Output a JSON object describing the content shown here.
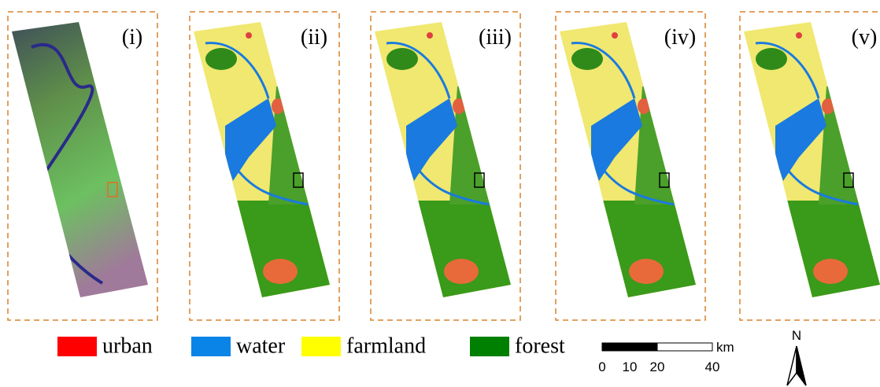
{
  "panels": [
    {
      "label": "(i)"
    },
    {
      "label": "(ii)"
    },
    {
      "label": "(iii)"
    },
    {
      "label": "(iv)"
    },
    {
      "label": "(v)"
    }
  ],
  "legend": [
    {
      "label": "urban",
      "color": "#ff0000"
    },
    {
      "label": "water",
      "color": "#0a84e6"
    },
    {
      "label": "farmland",
      "color": "#ffff00"
    },
    {
      "label": "forest",
      "color": "#008000"
    }
  ],
  "scale_bar": {
    "unit": "km",
    "labels": [
      "0",
      "10",
      "20",
      "40"
    ]
  },
  "north_arrow": {
    "label": "N"
  }
}
